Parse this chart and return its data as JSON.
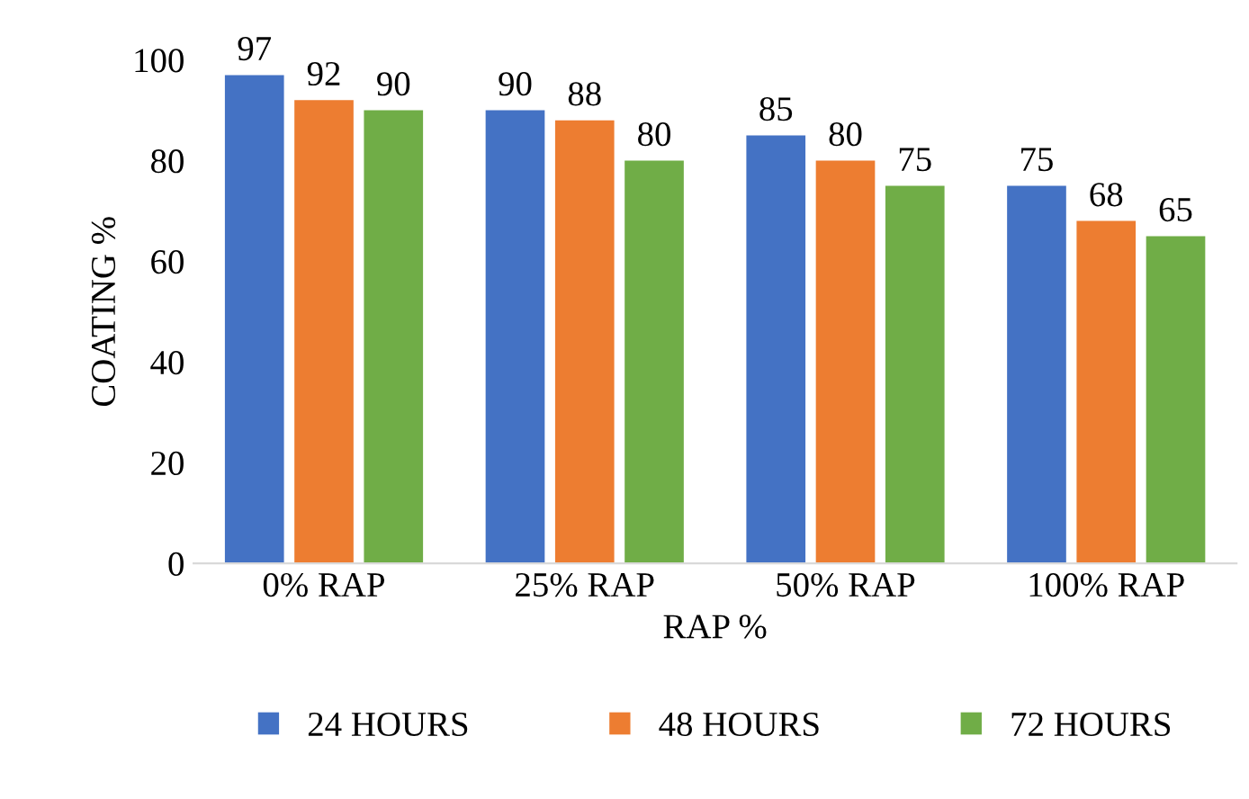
{
  "chart_data": {
    "type": "bar",
    "xlabel": "RAP %",
    "ylabel": "COATING %",
    "categories": [
      "0% RAP",
      "25% RAP",
      "50% RAP",
      "100% RAP"
    ],
    "series": [
      {
        "name": "24 HOURS",
        "color": "#4472c4",
        "values": [
          97,
          90,
          85,
          75
        ]
      },
      {
        "name": "48 HOURS",
        "color": "#ed7d31",
        "values": [
          92,
          88,
          80,
          68
        ]
      },
      {
        "name": "72 HOURS",
        "color": "#70ad47",
        "values": [
          90,
          80,
          75,
          65
        ]
      }
    ],
    "ylim": [
      0,
      100
    ],
    "yticks": [
      0,
      20,
      40,
      60,
      80,
      100
    ],
    "grid": false,
    "legend": "bottom",
    "data_labels": true
  }
}
